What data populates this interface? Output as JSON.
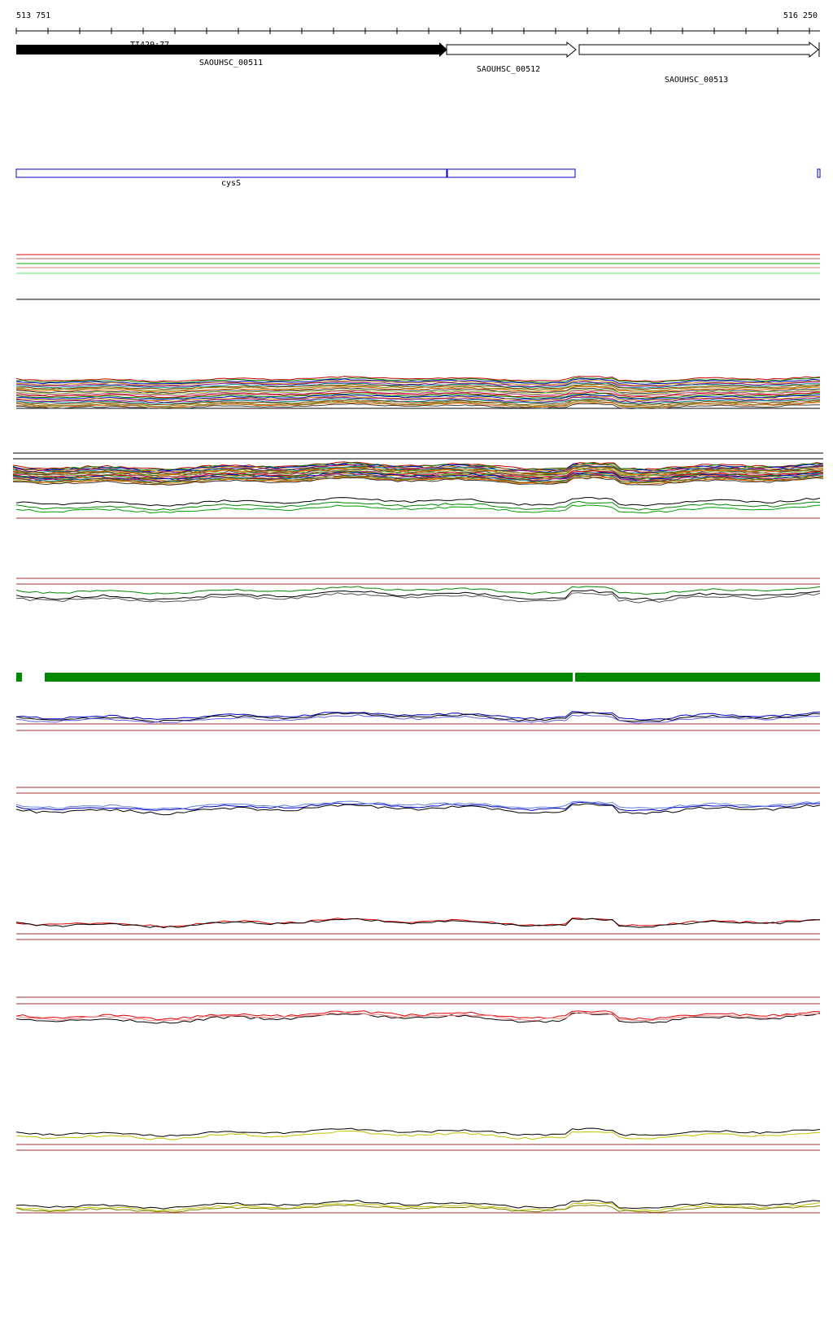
{
  "ruler": {
    "start": "513 751",
    "end": "516 250"
  },
  "features": [
    {
      "label": "TI429:77"
    }
  ],
  "genes": [
    {
      "label": "SAOUHSC_00511"
    },
    {
      "label": "SAOUHSC_00512"
    },
    {
      "label": "SAOUHSC_00513"
    }
  ],
  "domains": [
    {
      "label": "cysS"
    }
  ]
}
